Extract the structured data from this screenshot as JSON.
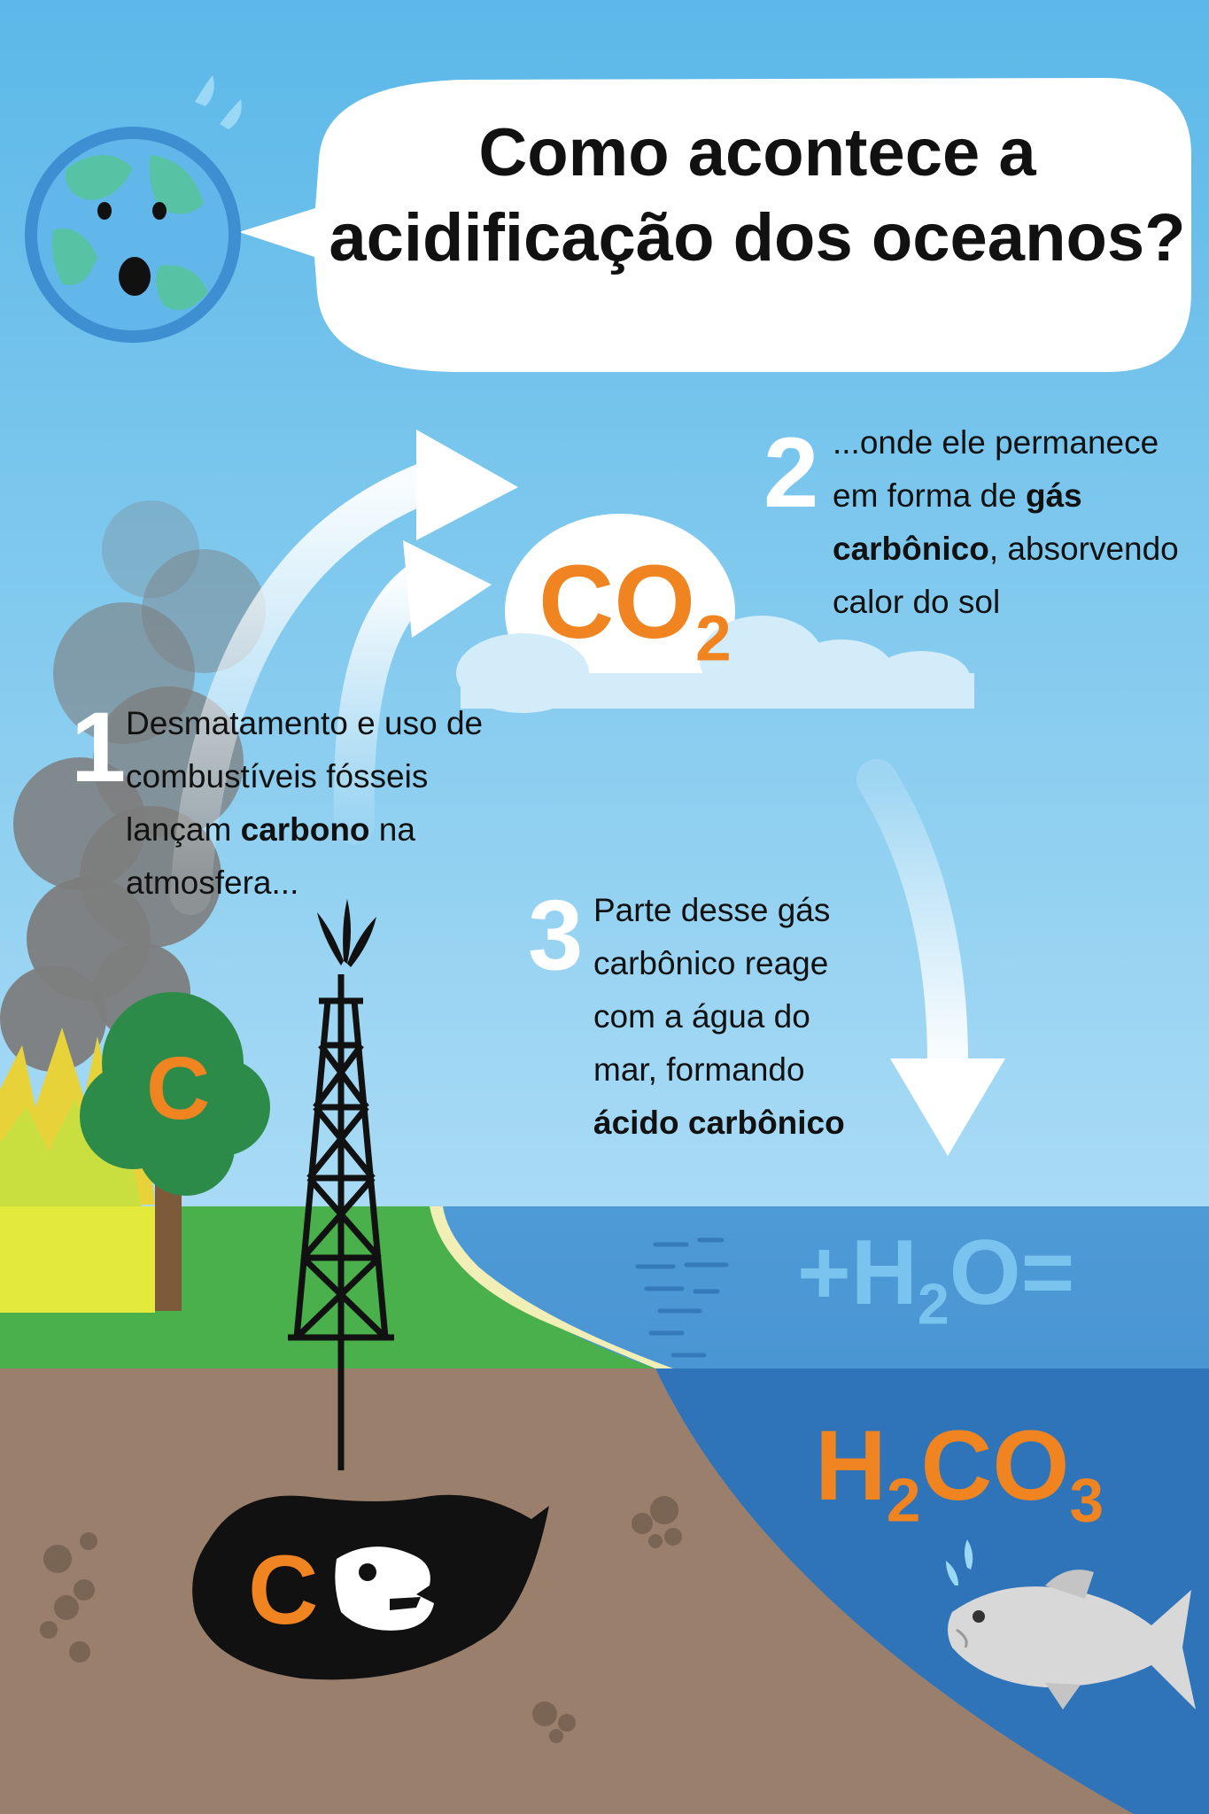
{
  "title": {
    "line1": "Como acontece a",
    "line2": "acidificação dos oceanos?"
  },
  "steps": [
    {
      "number": "1",
      "parts": [
        {
          "text": "Desmatamento e uso de combustíveis fósseis lançam ",
          "bold": false
        },
        {
          "text": "carbono",
          "bold": true
        },
        {
          "text": " na atmosfera...",
          "bold": false
        }
      ]
    },
    {
      "number": "2",
      "parts": [
        {
          "text": "...onde ele permanece em forma de ",
          "bold": false
        },
        {
          "text": "gás carbônico",
          "bold": true
        },
        {
          "text": ", absorvendo calor do sol",
          "bold": false
        }
      ]
    },
    {
      "number": "3",
      "parts": [
        {
          "text": "Parte desse gás carbônico reage com a água do mar, formando ",
          "bold": false
        },
        {
          "text": "ácido carbônico",
          "bold": true
        }
      ]
    }
  ],
  "formulas": {
    "co2": {
      "base": "CO",
      "sub": "2"
    },
    "h2o": {
      "pre": "+H",
      "sub": "2",
      "post": "O="
    },
    "h2co3": {
      "a": "H",
      "sub1": "2",
      "b": "CO",
      "sub2": "3"
    }
  },
  "carbon_symbol": "C",
  "colors": {
    "sky_top": "#5bb8e8",
    "sky_bottom": "#a5d9f4",
    "sea": "#4a95d3",
    "deep_sea": "#2f73b8",
    "soil": "#9a7f6c",
    "grass": "#49b04c",
    "accent_orange": "#ef8421",
    "h2o_blue": "#79c3ef"
  },
  "icons": [
    "earth-icon",
    "speech-bubble-icon",
    "arrow-icon",
    "cloud-icon",
    "fire-icon",
    "tree-icon",
    "smoke-icon",
    "oil-rig-icon",
    "oil-deposit-icon",
    "dinosaur-skull-icon",
    "fish-icon",
    "pebble-icon"
  ]
}
